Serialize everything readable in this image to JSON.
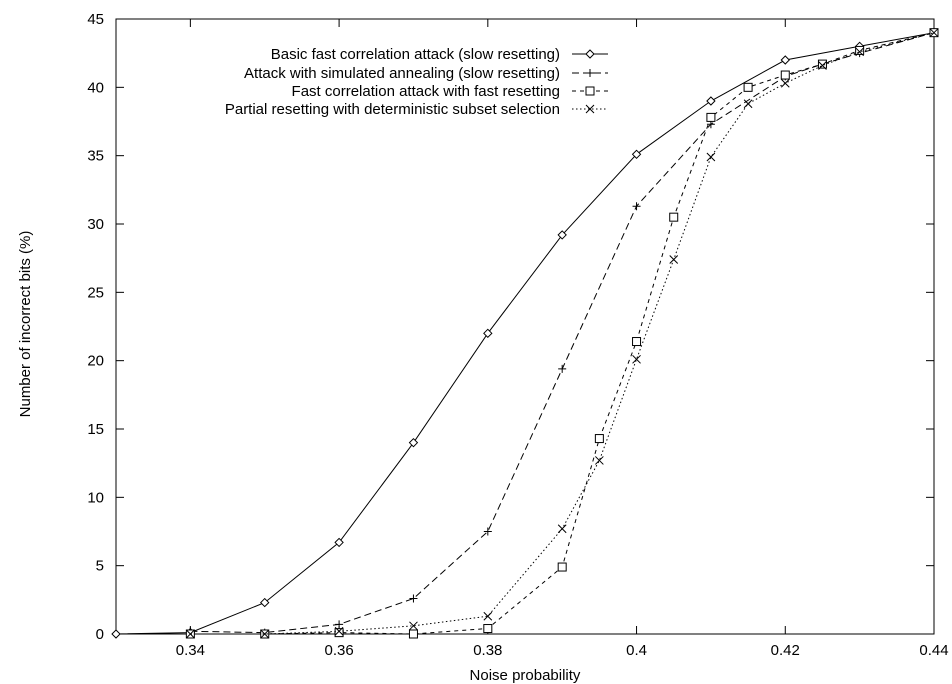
{
  "chart_data": {
    "type": "line",
    "title": "",
    "xlabel": "Noise probability",
    "ylabel": "Number of incorrect bits (%)",
    "xlim": [
      0.33,
      0.44
    ],
    "ylim": [
      0,
      45
    ],
    "xticks": [
      0.34,
      0.36,
      0.38,
      0.4,
      0.42,
      0.44
    ],
    "xtick_labels": [
      "0.34",
      "0.36",
      "0.38",
      "0.4",
      "0.42",
      "0.44"
    ],
    "yticks": [
      0,
      5,
      10,
      15,
      20,
      25,
      30,
      35,
      40,
      45
    ],
    "ytick_labels": [
      "0",
      "5",
      "10",
      "15",
      "20",
      "25",
      "30",
      "35",
      "40",
      "45"
    ],
    "grid": false,
    "legend_position": "top-left",
    "series": [
      {
        "name": "Basic fast correlation attack (slow resetting)",
        "marker": "diamond",
        "dash": "solid",
        "x": [
          0.33,
          0.34,
          0.35,
          0.36,
          0.37,
          0.38,
          0.39,
          0.4,
          0.41,
          0.42,
          0.43,
          0.44
        ],
        "y": [
          0.0,
          0.1,
          2.3,
          6.7,
          14.0,
          22.0,
          29.2,
          35.1,
          39.0,
          42.0,
          43.0,
          44.0
        ]
      },
      {
        "name": "Attack with simulated annealing (slow resetting)",
        "marker": "plus",
        "dash": "dashed",
        "x": [
          0.34,
          0.35,
          0.36,
          0.37,
          0.38,
          0.39,
          0.4,
          0.41,
          0.42,
          0.425,
          0.43,
          0.44
        ],
        "y": [
          0.2,
          0.1,
          0.7,
          2.6,
          7.5,
          19.4,
          31.3,
          37.3,
          40.8,
          41.7,
          42.5,
          44.0
        ]
      },
      {
        "name": "Fast correlation attack with fast resetting",
        "marker": "square",
        "dash": "shortdash",
        "x": [
          0.34,
          0.35,
          0.36,
          0.37,
          0.38,
          0.39,
          0.395,
          0.4,
          0.405,
          0.41,
          0.415,
          0.42,
          0.425,
          0.43,
          0.44
        ],
        "y": [
          0.0,
          0.0,
          0.1,
          0.0,
          0.4,
          4.9,
          14.3,
          21.4,
          30.5,
          37.8,
          40.0,
          40.9,
          41.7,
          42.7,
          44.0
        ]
      },
      {
        "name": "Partial resetting with deterministic subset selection",
        "marker": "cross",
        "dash": "dotted",
        "x": [
          0.34,
          0.35,
          0.36,
          0.37,
          0.38,
          0.39,
          0.395,
          0.4,
          0.405,
          0.41,
          0.415,
          0.42,
          0.425,
          0.43,
          0.44
        ],
        "y": [
          0.0,
          0.0,
          0.2,
          0.6,
          1.3,
          7.7,
          12.7,
          20.1,
          27.4,
          34.9,
          38.8,
          40.3,
          41.6,
          42.6,
          44.0
        ]
      }
    ]
  }
}
